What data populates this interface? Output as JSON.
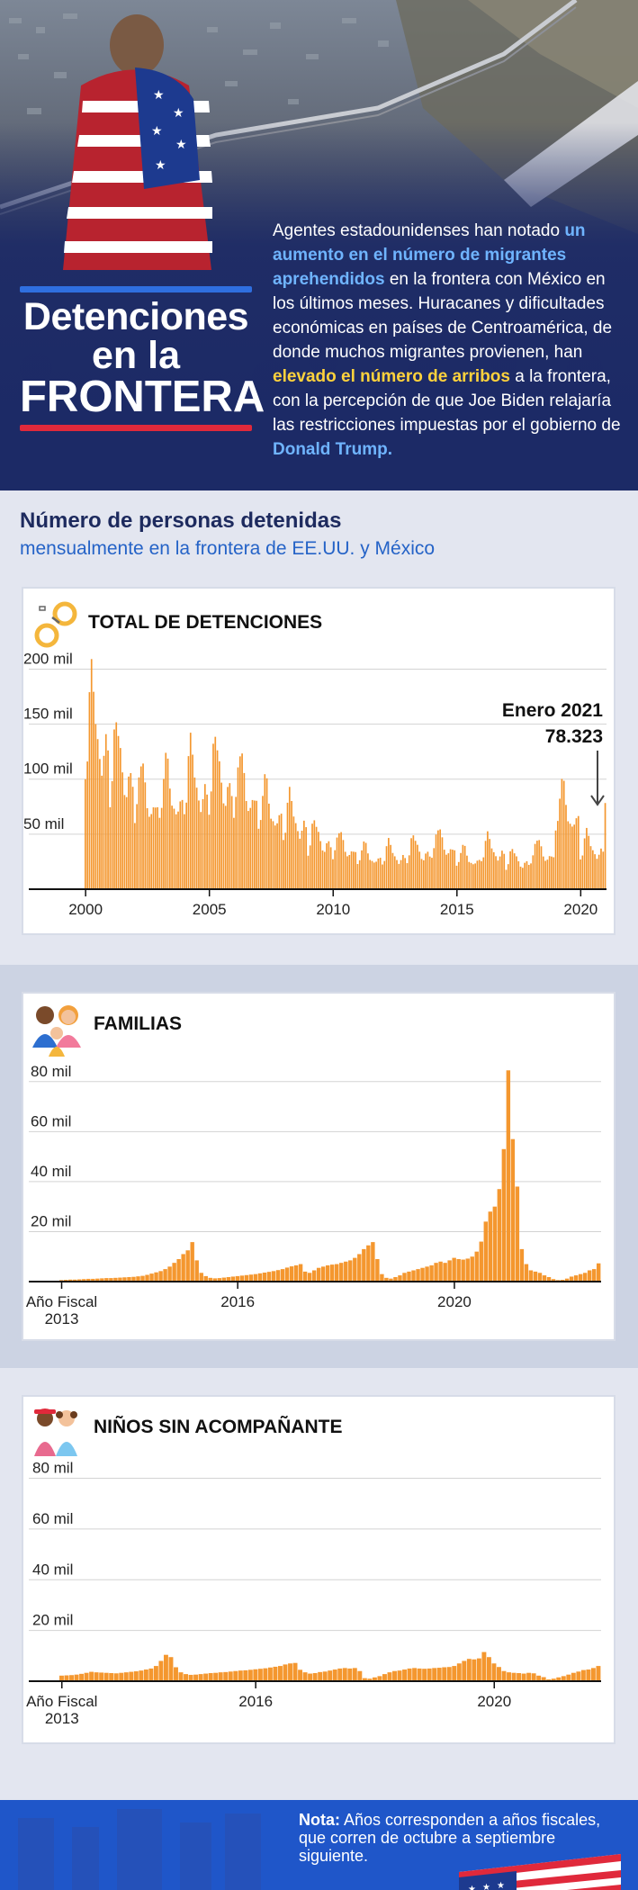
{
  "hero": {
    "title_line1": "Detenciones",
    "title_line2": "en la",
    "title_line3": "FRONTERA",
    "paragraph": {
      "p1": "Agentes estadounidenses han notado ",
      "h1": "un aumento en el número de migrantes aprehendidos",
      "p2": " en la frontera con México en los últimos meses. Huracanes y dificultades económicas en países de Centroamérica, de donde muchos migrantes provienen, han ",
      "h2": "elevado el número de arribos",
      "p3": " a la frontera, con la percepción de que Joe Biden relajaría las restricciones impuestas por el gobierno de ",
      "h3": "Donald Trump."
    }
  },
  "intro": {
    "heading": "Número de personas detenidas",
    "subheading": "mensualmente en la frontera de EE.UU. y México"
  },
  "colors": {
    "bar": "#f4972f",
    "navy": "#1d2a5e",
    "blue": "#2563c7",
    "red": "#e0293b"
  },
  "icons": {
    "total": "handcuffs-icon",
    "families": "family-icon",
    "minors": "children-icon",
    "footer": "us-flag-icon"
  },
  "charts": {
    "total": {
      "title": "TOTAL DE DETENCIONES",
      "annotation_label": "Enero 2021",
      "annotation_value": "78.323"
    },
    "families": {
      "title": "FAMILIAS",
      "x_first_line1": "Año Fiscal",
      "x_first_line2": "2013"
    },
    "minors": {
      "title": "NIÑOS SIN ACOMPAÑANTE",
      "x_first_line1": "Año Fiscal",
      "x_first_line2": "2013"
    }
  },
  "chart_data": [
    {
      "type": "bar",
      "title": "TOTAL DE DETENCIONES",
      "x_start": "2000-01",
      "x_end": "2021-01",
      "ylim": [
        0,
        220000
      ],
      "y_ticks": [
        50000,
        100000,
        150000,
        200000
      ],
      "y_tick_labels": [
        "50 mil",
        "100 mil",
        "150 mil",
        "200 mil"
      ],
      "x_tick_labels": [
        "2000",
        "2005",
        "2010",
        "2015",
        "2020"
      ],
      "grid": true,
      "annual_shape": [
        0.72,
        0.88,
        1.25,
        1.42,
        1.33,
        1.12,
        0.93,
        0.82,
        0.78,
        0.88,
        0.95,
        0.9
      ],
      "yearly_base": {
        "2000": 140000,
        "2001": 110000,
        "2002": 83000,
        "2003": 85000,
        "2004": 95000,
        "2005": 100000,
        "2006": 90000,
        "2007": 72000,
        "2008": 62000,
        "2009": 45000,
        "2010": 38000,
        "2011": 30000,
        "2012": 31000,
        "2013": 35000,
        "2014": 40000,
        "2015": 28000,
        "2016": 35000,
        "2017": 26000,
        "2018": 33000,
        "2019": 70000,
        "2020": 37000
      },
      "annotation": {
        "label": "Enero 2021",
        "value": 78323
      },
      "last_value": 78323
    },
    {
      "type": "bar",
      "title": "FAMILIAS",
      "x_start": "2012-10",
      "x_end": "2021-01",
      "ylim": [
        0,
        90000
      ],
      "y_ticks": [
        20000,
        40000,
        60000,
        80000
      ],
      "y_tick_labels": [
        "20 mil",
        "40 mil",
        "60 mil",
        "80 mil"
      ],
      "x_tick_labels": [
        "Año Fiscal 2013",
        "2016",
        "2020"
      ],
      "grid": true,
      "values": [
        600,
        700,
        800,
        800,
        900,
        1000,
        1100,
        1100,
        1200,
        1300,
        1400,
        1400,
        1500,
        1600,
        1700,
        1800,
        1900,
        2100,
        2300,
        2700,
        3200,
        3700,
        4200,
        5000,
        6000,
        7500,
        9000,
        11000,
        12500,
        15800,
        8500,
        3500,
        2200,
        1500,
        1300,
        1400,
        1600,
        1800,
        2000,
        2200,
        2400,
        2600,
        2800,
        3000,
        3300,
        3600,
        3900,
        4200,
        4600,
        5000,
        5600,
        6100,
        6500,
        7000,
        4000,
        3500,
        4500,
        5500,
        6000,
        6500,
        6800,
        7000,
        7500,
        8000,
        8500,
        9500,
        11000,
        13000,
        14500,
        15800,
        9000,
        3000,
        1500,
        1200,
        1800,
        2500,
        3500,
        4000,
        4500,
        5000,
        5500,
        6000,
        6500,
        7500,
        8000,
        7500,
        8500,
        9500,
        9000,
        8800,
        9200,
        10000,
        12000,
        16000,
        24000,
        28000,
        30000,
        37000,
        53000,
        84500,
        57000,
        38000,
        13000,
        7000,
        4500,
        4000,
        3500,
        2500,
        1800,
        1000,
        600,
        700,
        1200,
        2000,
        2500,
        3000,
        3500,
        4500,
        5000,
        7300
      ]
    },
    {
      "type": "bar",
      "title": "NIÑOS SIN ACOMPAÑANTE",
      "x_start": "2012-10",
      "x_end": "2021-01",
      "ylim": [
        0,
        88000
      ],
      "y_ticks": [
        20000,
        40000,
        60000,
        80000
      ],
      "y_tick_labels": [
        "20 mil",
        "40 mil",
        "60 mil",
        "80 mil"
      ],
      "x_tick_labels": [
        "Año Fiscal 2013",
        "2016",
        "2020"
      ],
      "grid": true,
      "values": [
        2200,
        2300,
        2400,
        2600,
        2900,
        3300,
        3700,
        3500,
        3400,
        3300,
        3200,
        3100,
        3300,
        3500,
        3700,
        3900,
        4200,
        4600,
        5000,
        6000,
        8000,
        10400,
        9500,
        5500,
        3500,
        2800,
        2500,
        2600,
        2800,
        3000,
        3200,
        3300,
        3500,
        3600,
        3800,
        4000,
        4200,
        4300,
        4500,
        4700,
        4900,
        5100,
        5400,
        5700,
        6000,
        6600,
        7000,
        7200,
        4500,
        3500,
        3000,
        3200,
        3600,
        3800,
        4200,
        4600,
        5000,
        5200,
        5000,
        5200,
        4000,
        1200,
        1000,
        1500,
        2000,
        2800,
        3500,
        4000,
        4200,
        4600,
        5000,
        5200,
        5000,
        4900,
        5000,
        5200,
        5300,
        5500,
        5600,
        6000,
        7000,
        8000,
        8800,
        8600,
        9000,
        11500,
        9500,
        7000,
        5600,
        4000,
        3500,
        3300,
        3200,
        3000,
        3300,
        3100,
        2200,
        1600,
        700,
        1000,
        1500,
        2000,
        2600,
        3300,
        3800,
        4400,
        4600,
        5200,
        6000
      ]
    }
  ],
  "footer": {
    "note_bold": "Nota:",
    "note_text": " Años corresponden a años fiscales, que corren de octubre a septiembre siguiente."
  }
}
